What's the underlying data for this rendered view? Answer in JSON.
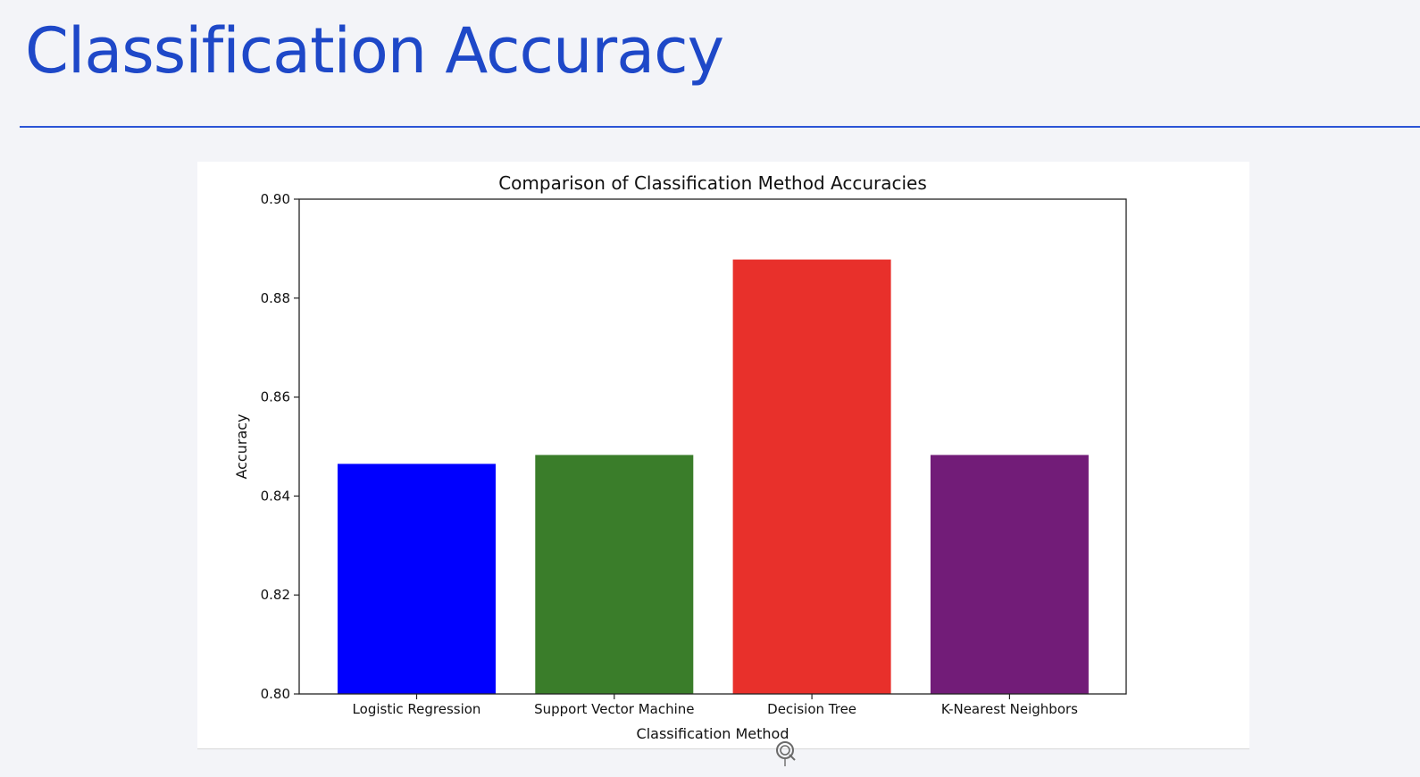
{
  "slide": {
    "title": "Classification Accuracy"
  },
  "colors": {
    "title": "#1e48c8",
    "rule": "#2b55d6",
    "background": "#f3f4f8"
  },
  "chart_data": {
    "type": "bar",
    "title": "Comparison of Classification Method Accuracies",
    "xlabel": "Classification Method",
    "ylabel": "Accuracy",
    "categories": [
      "Logistic Regression",
      "Support Vector Machine",
      "Decision Tree",
      "K-Nearest Neighbors"
    ],
    "values": [
      0.8465,
      0.8483,
      0.8878,
      0.8483
    ],
    "colors": [
      "#0000ff",
      "#3a7d2a",
      "#e8302b",
      "#721c78"
    ],
    "ylim": [
      0.8,
      0.9
    ],
    "yticks": [
      "0.80",
      "0.82",
      "0.84",
      "0.86",
      "0.88",
      "0.90"
    ],
    "grid": false,
    "legend": false
  },
  "icons": {
    "refresh": "rotate-handle-icon"
  }
}
